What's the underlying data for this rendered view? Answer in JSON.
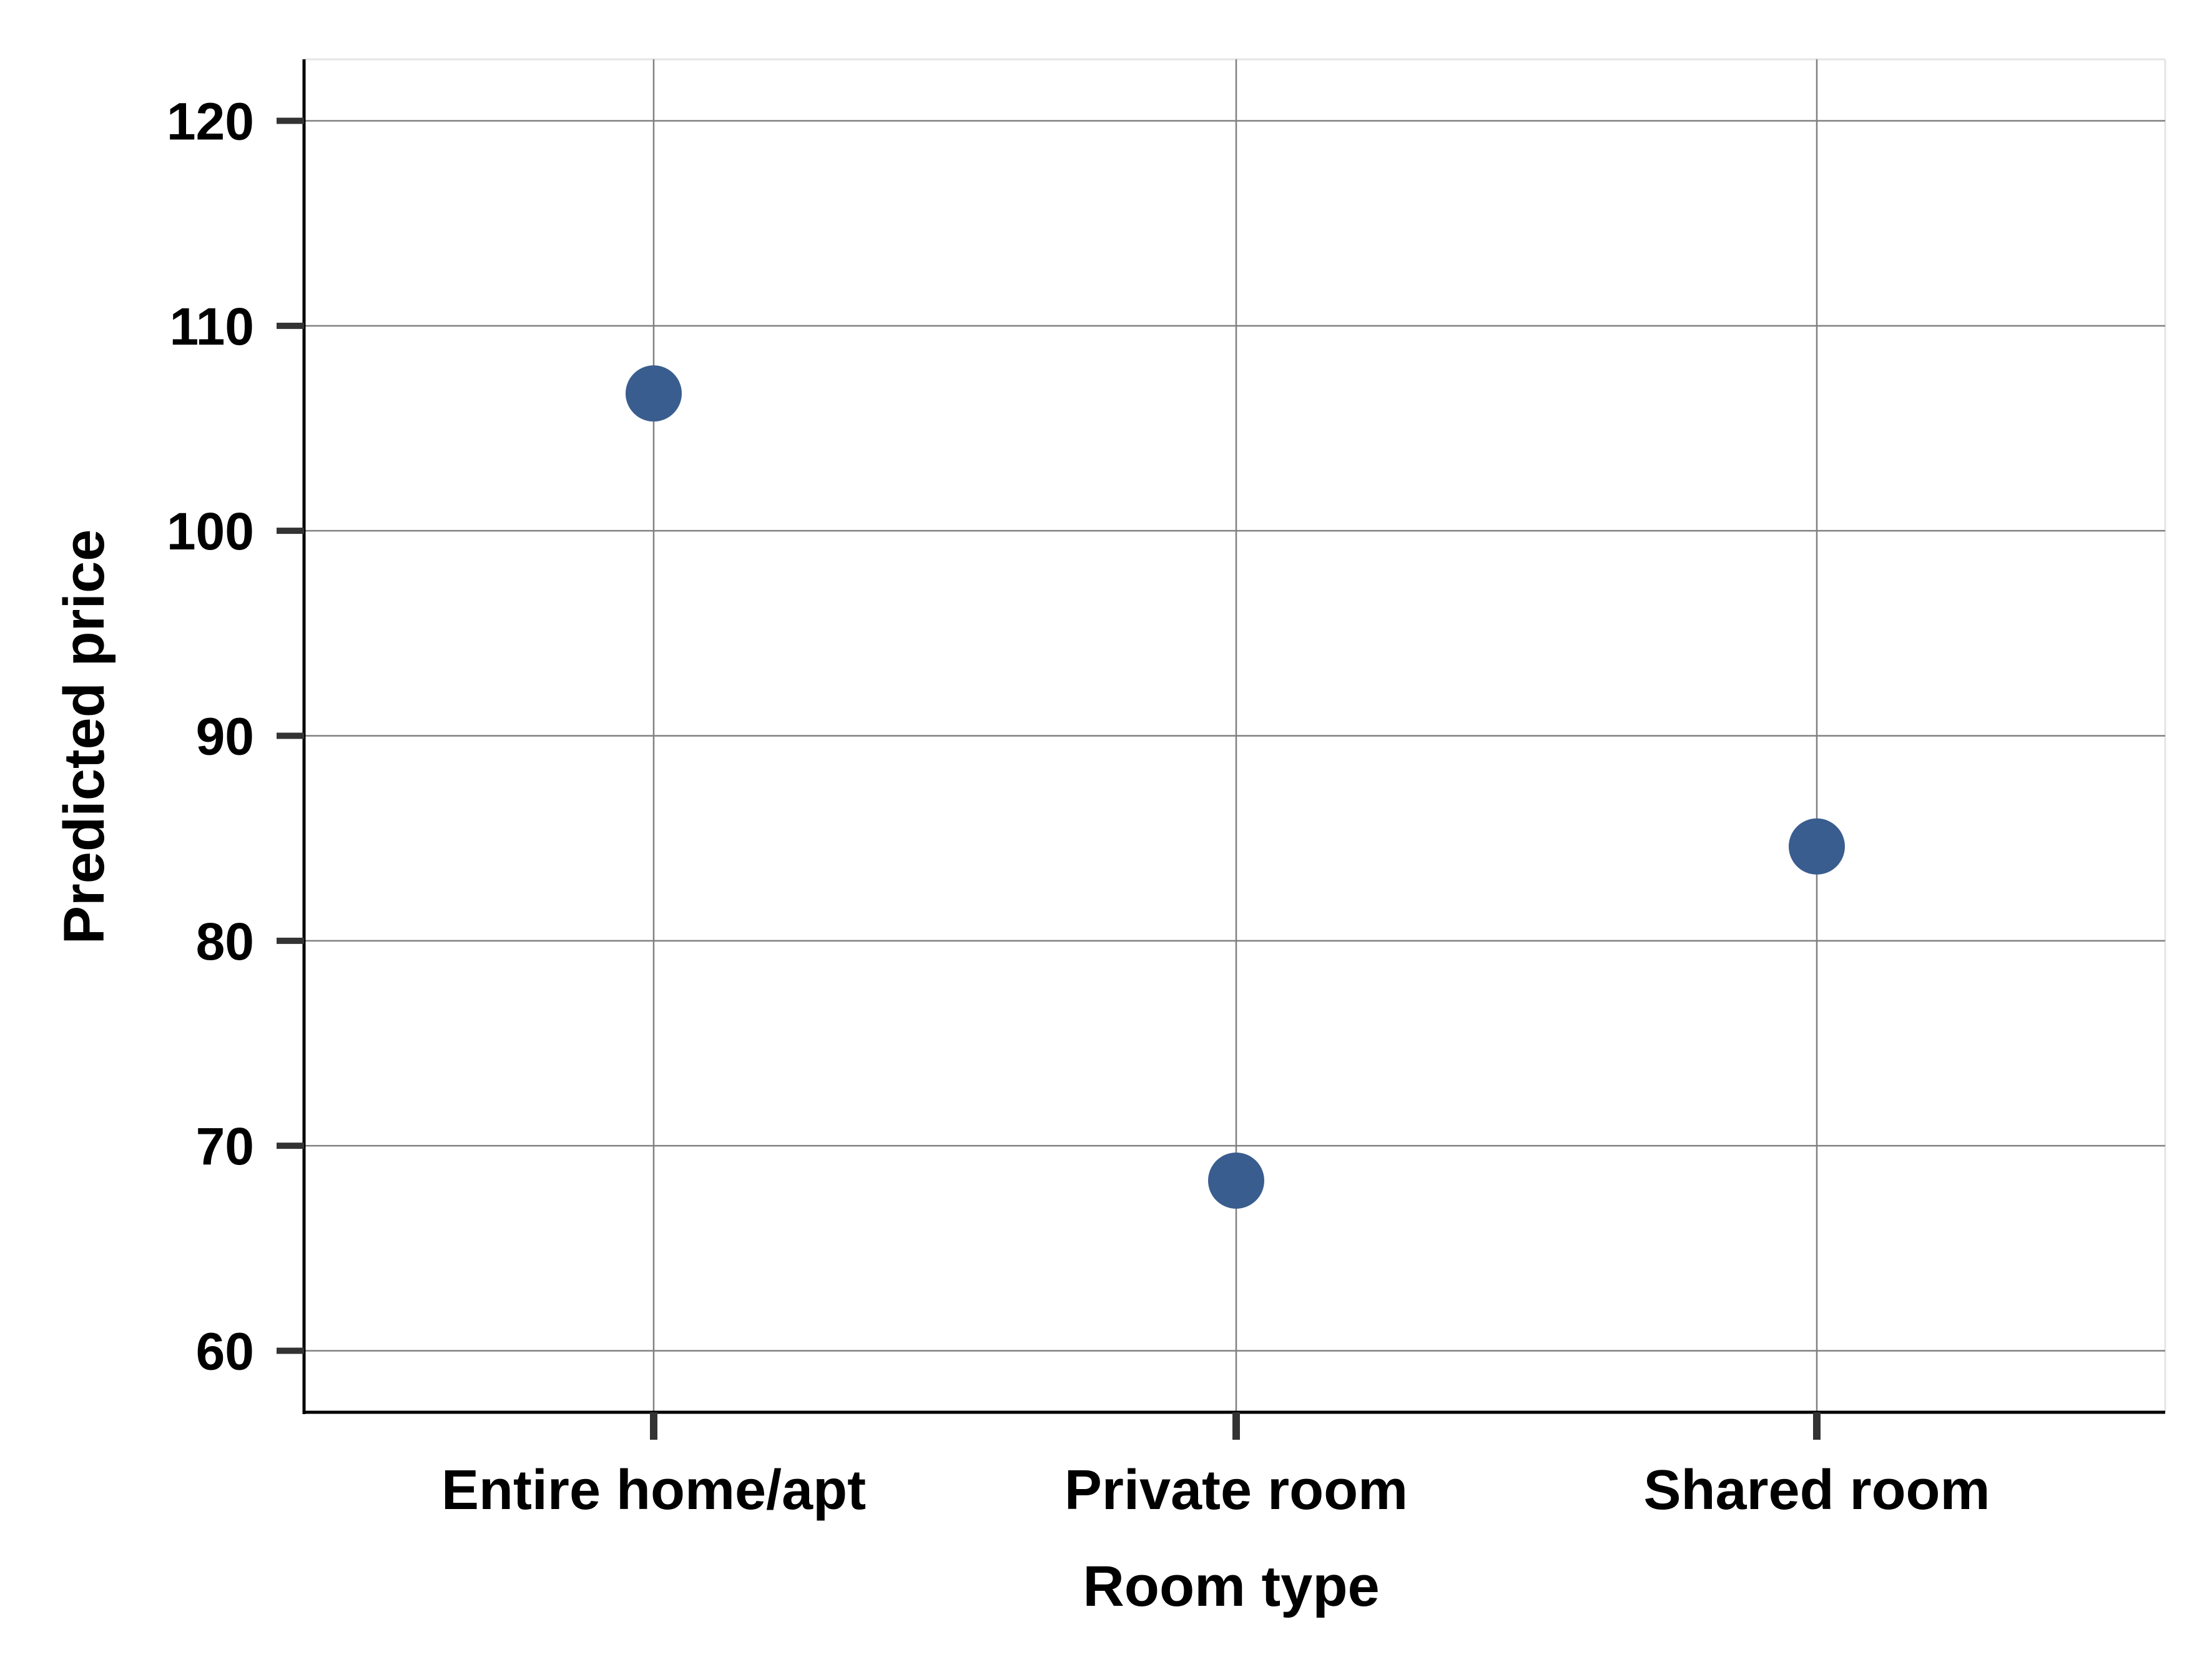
{
  "chart_data": {
    "type": "scatter",
    "title": "",
    "xlabel": "Room type",
    "ylabel": "Predicted price",
    "categories": [
      "Entire home/apt",
      "Private room",
      "Shared room"
    ],
    "series": [
      {
        "values": [
          106.7,
          68.3,
          84.6
        ]
      }
    ],
    "ylim": [
      57,
      123
    ],
    "yticks": [
      60,
      70,
      80,
      90,
      100,
      110,
      120
    ],
    "ytick_labels": [
      "60",
      "70",
      "80",
      "90",
      "100",
      "110",
      "120"
    ],
    "grid": true,
    "legend": "none",
    "colors": {
      "point": "#3A5D8F",
      "grid": "#808080",
      "axis": "#000000",
      "tick": "#333333"
    }
  }
}
